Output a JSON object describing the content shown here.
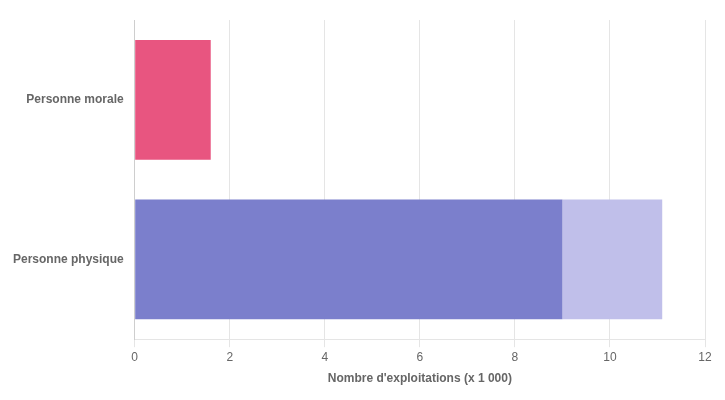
{
  "chart_data": {
    "type": "bar",
    "orientation": "horizontal",
    "stacked": true,
    "categories": [
      "Personne morale",
      "Personne physique"
    ],
    "series": [
      {
        "values": [
          1.6,
          9.0
        ],
        "colors": [
          "#e85580",
          "#7b7fcc"
        ]
      },
      {
        "values": [
          null,
          2.1
        ],
        "colors": [
          "#ffffff",
          "#c0bfea"
        ]
      }
    ],
    "xlabel": "Nombre d'exploitations (x 1 000)",
    "xlim": [
      0,
      12
    ],
    "xticks": [
      0,
      2,
      4,
      6,
      8,
      10,
      12
    ],
    "grid": "x",
    "legend": false
  }
}
